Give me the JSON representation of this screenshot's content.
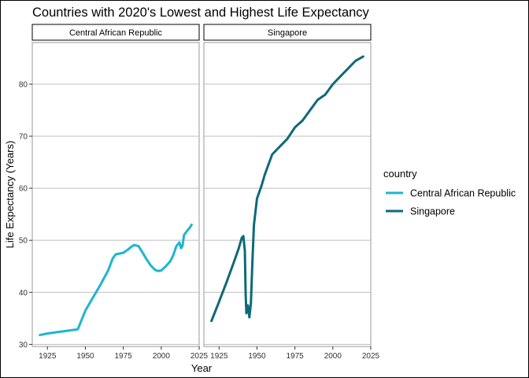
{
  "chart_data": {
    "type": "line",
    "title": "Countries with 2020's Lowest and Highest Life Expectancy",
    "xlabel": "Year",
    "ylabel": "Life Expectancy (Years)",
    "xlim": [
      1915,
      2025
    ],
    "ylim": [
      29.6,
      88
    ],
    "x_ticks": [
      1925,
      1950,
      1975,
      2000,
      2025
    ],
    "y_ticks": [
      30,
      40,
      50,
      60,
      70,
      80
    ],
    "grid": "horizontal",
    "facets": [
      "Central African Republic",
      "Singapore"
    ],
    "legend": {
      "title": "country",
      "position": "right",
      "entries": [
        "Central African Republic",
        "Singapore"
      ]
    },
    "series": [
      {
        "name": "Central African Republic",
        "color": "#1fb5d0",
        "x": [
          1920,
          1925,
          1930,
          1935,
          1940,
          1945,
          1950,
          1955,
          1960,
          1965,
          1968,
          1970,
          1975,
          1978,
          1980,
          1982,
          1985,
          1988,
          1990,
          1993,
          1996,
          1998,
          2000,
          2003,
          2006,
          2008,
          2010,
          2012,
          2013,
          2014,
          2015,
          2017,
          2019,
          2020
        ],
        "y": [
          31.8,
          32.1,
          32.3,
          32.5,
          32.7,
          32.9,
          36.5,
          39.0,
          41.5,
          44.2,
          46.5,
          47.3,
          47.6,
          48.2,
          48.7,
          49.1,
          48.9,
          47.5,
          46.5,
          45.2,
          44.3,
          44.1,
          44.2,
          45.0,
          46.0,
          47.2,
          48.9,
          49.6,
          48.5,
          48.9,
          51.0,
          51.8,
          52.5,
          53.0
        ]
      },
      {
        "name": "Singapore",
        "color": "#0d6a78",
        "x": [
          1920,
          1925,
          1930,
          1935,
          1938,
          1940,
          1941,
          1942,
          1942.5,
          1943,
          1944,
          1945,
          1946,
          1947,
          1948,
          1950,
          1953,
          1955,
          1960,
          1965,
          1970,
          1975,
          1980,
          1985,
          1990,
          1995,
          2000,
          2005,
          2010,
          2015,
          2020
        ],
        "y": [
          34.5,
          38.2,
          42.0,
          46.0,
          48.5,
          50.5,
          50.8,
          48.0,
          40.0,
          36.0,
          37.5,
          35.2,
          38.0,
          46.0,
          53.0,
          58.0,
          60.5,
          62.5,
          66.5,
          68.0,
          69.5,
          71.7,
          73.0,
          75.0,
          77.0,
          78.0,
          80.0,
          81.5,
          83.0,
          84.5,
          85.3
        ]
      }
    ]
  }
}
